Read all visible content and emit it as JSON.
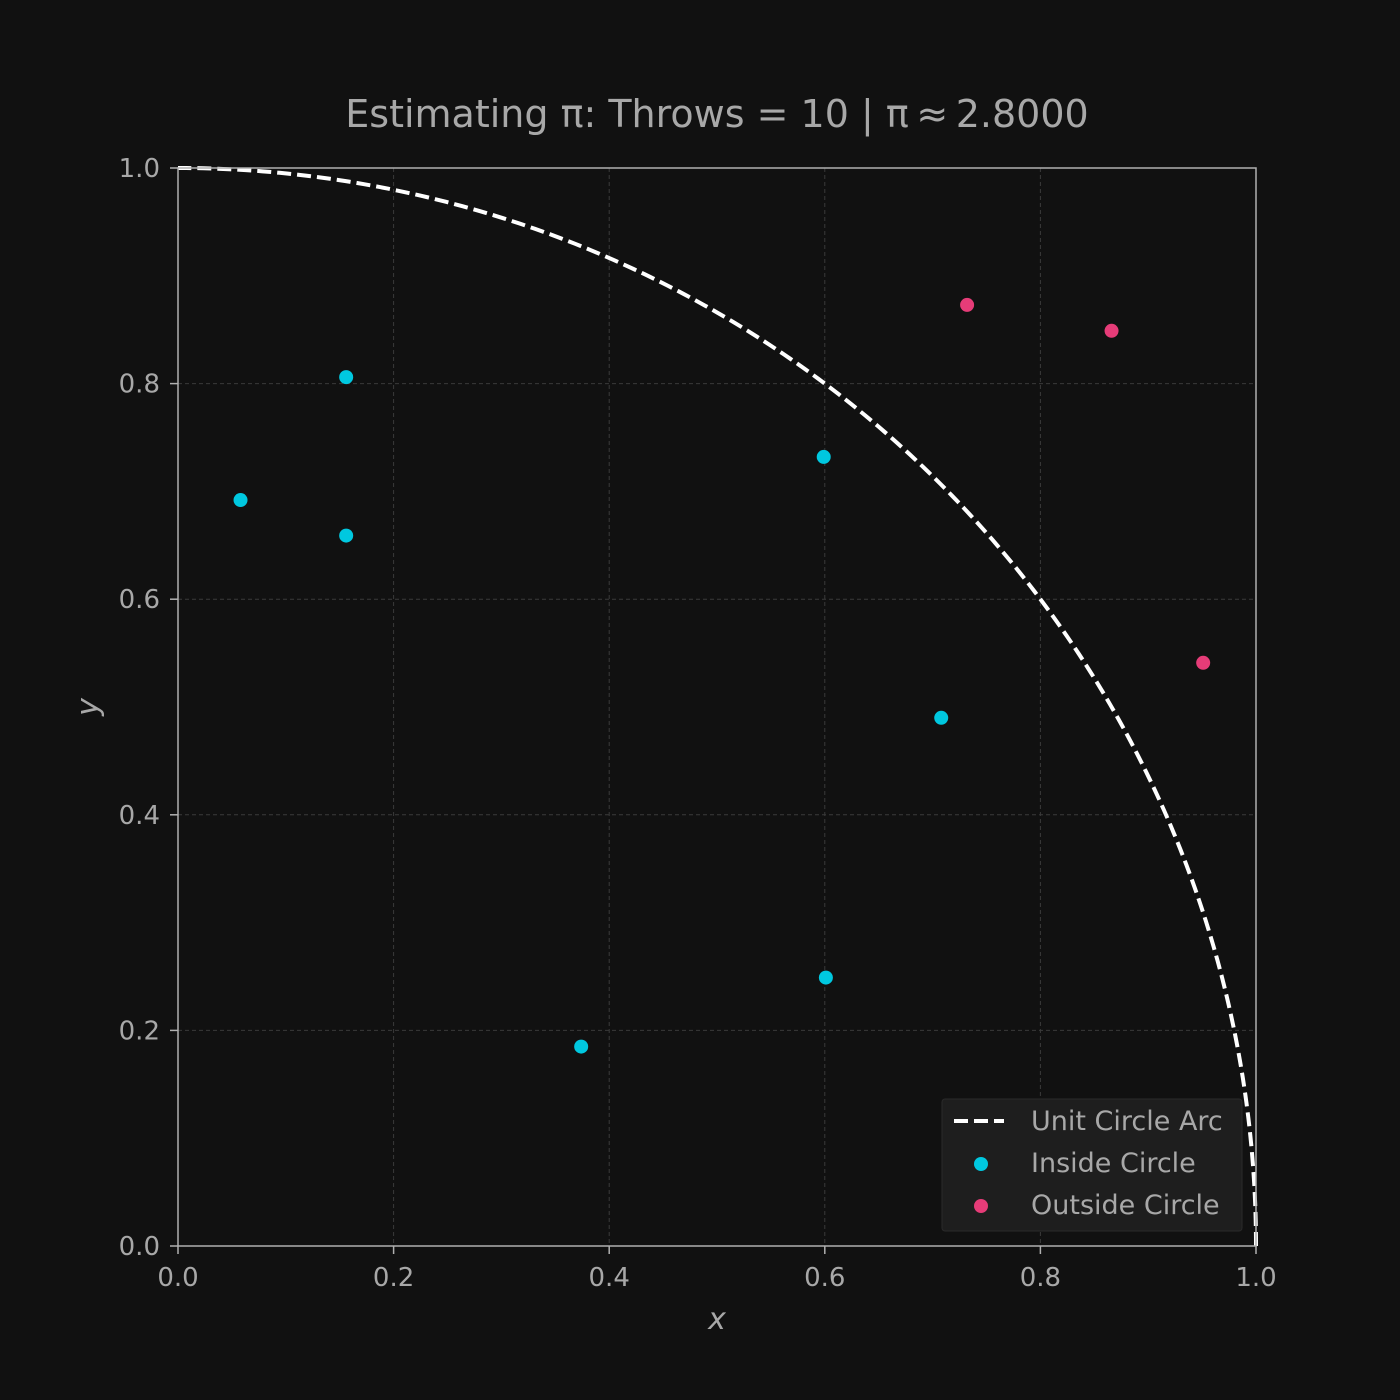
{
  "chart_data": {
    "type": "scatter",
    "title": "Estimating π: Throws = 10 | π ≈ 2.8000",
    "xlabel": "x",
    "ylabel": "y",
    "xlim": [
      0.0,
      1.0
    ],
    "ylim": [
      0.0,
      1.0
    ],
    "xticks": [
      "0.0",
      "0.2",
      "0.4",
      "0.6",
      "0.8",
      "1.0"
    ],
    "yticks": [
      "0.0",
      "0.2",
      "0.4",
      "0.6",
      "0.8",
      "1.0"
    ],
    "grid": true,
    "legend_position": "lower-right",
    "arc": {
      "name": "Unit Circle Arc",
      "color": "#ffffff",
      "style": "dashed"
    },
    "series": [
      {
        "name": "Inside Circle",
        "color": "#00c8e0",
        "points": [
          [
            0.058,
            0.692
          ],
          [
            0.156,
            0.806
          ],
          [
            0.156,
            0.659
          ],
          [
            0.374,
            0.185
          ],
          [
            0.599,
            0.732
          ],
          [
            0.601,
            0.249
          ],
          [
            0.708,
            0.49
          ]
        ]
      },
      {
        "name": "Outside Circle",
        "color": "#e63c78",
        "points": [
          [
            0.732,
            0.873
          ],
          [
            0.866,
            0.849
          ],
          [
            0.951,
            0.541
          ]
        ]
      }
    ]
  }
}
